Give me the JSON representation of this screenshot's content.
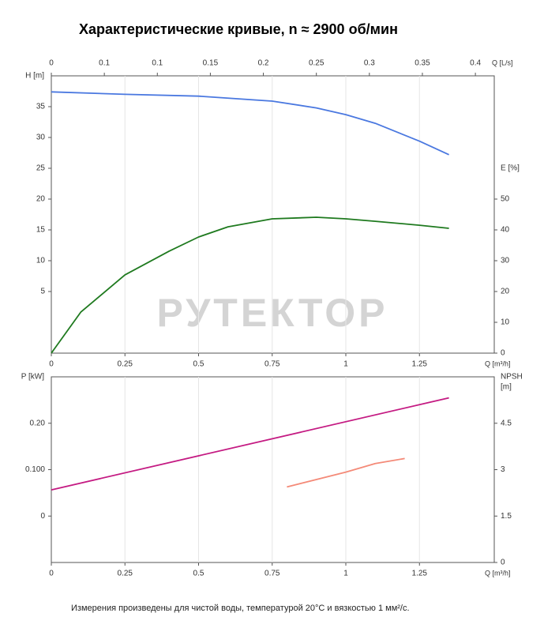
{
  "title": "Характеристические кривые, n ≈ 2900 об/мин",
  "watermark": "РУТЕКТОР",
  "footnote": "Измерения произведены для чистой воды, температурой 20°C и вязкостью 1 мм²/с.",
  "chart_data": [
    {
      "type": "line",
      "grid": true,
      "x_label": "Q [m³/h]",
      "xlim": [
        0,
        1.504
      ],
      "xticks": [
        0,
        0.25,
        0.5,
        0.75,
        1,
        1.25
      ],
      "x2_label": "Q [L/s]",
      "x2lim": [
        0,
        0.4178
      ],
      "x2ticks": [
        0,
        {
          "value": 0.05,
          "label": "0.1"
        },
        0.1,
        0.15,
        0.2,
        0.25,
        0.3,
        0.35,
        0.4
      ],
      "y_label": "H [m]",
      "ylim": [
        -5,
        40
      ],
      "yticks": [
        5,
        10,
        15,
        20,
        25,
        30,
        35
      ],
      "y2_label": "E [%]",
      "y2lim": [
        0,
        90
      ],
      "y2ticks": [
        0,
        10,
        20,
        30,
        40,
        50
      ],
      "series": [
        {
          "name": "H",
          "color": "#4a78e0",
          "axis": "y",
          "x": [
            0,
            0.25,
            0.5,
            0.75,
            0.9,
            1.0,
            1.1,
            1.25,
            1.35
          ],
          "values": [
            37.4,
            37.0,
            36.7,
            35.9,
            34.8,
            33.7,
            32.3,
            29.4,
            27.2
          ]
        },
        {
          "name": "E",
          "color": "#1f7a1f",
          "axis": "y2",
          "x": [
            0,
            0.1,
            0.25,
            0.4,
            0.5,
            0.6,
            0.75,
            0.9,
            1.0,
            1.1,
            1.25,
            1.35
          ],
          "values": [
            0,
            13.3,
            25.4,
            33.1,
            37.7,
            41,
            43.6,
            44.1,
            43.6,
            42.8,
            41.5,
            40.5
          ]
        }
      ]
    },
    {
      "type": "line",
      "grid": true,
      "x_label": "Q [m³/h]",
      "xlim": [
        0,
        1.504
      ],
      "xticks": [
        0,
        0.25,
        0.5,
        0.75,
        1,
        1.25
      ],
      "y_label": "P [kW]",
      "ylim": [
        -0.1,
        0.3
      ],
      "yticks": [
        0,
        {
          "value": 0.1,
          "label": "0.100"
        },
        {
          "value": 0.2,
          "label": "0.20"
        }
      ],
      "y2_label": "NPSH",
      "y2_unit": "[m]",
      "y2lim": [
        0,
        6
      ],
      "y2ticks": [
        0,
        1.5,
        3,
        4.5
      ],
      "series": [
        {
          "name": "P",
          "color": "#c41a82",
          "axis": "y",
          "x": [
            0,
            1.35
          ],
          "values": [
            0.0564,
            0.2547
          ]
        },
        {
          "name": "NPSH",
          "color": "#f48a78",
          "axis": "y2",
          "x": [
            0.8,
            1.0,
            1.1,
            1.2
          ],
          "values": [
            2.44,
            2.92,
            3.2,
            3.36
          ]
        }
      ]
    }
  ]
}
